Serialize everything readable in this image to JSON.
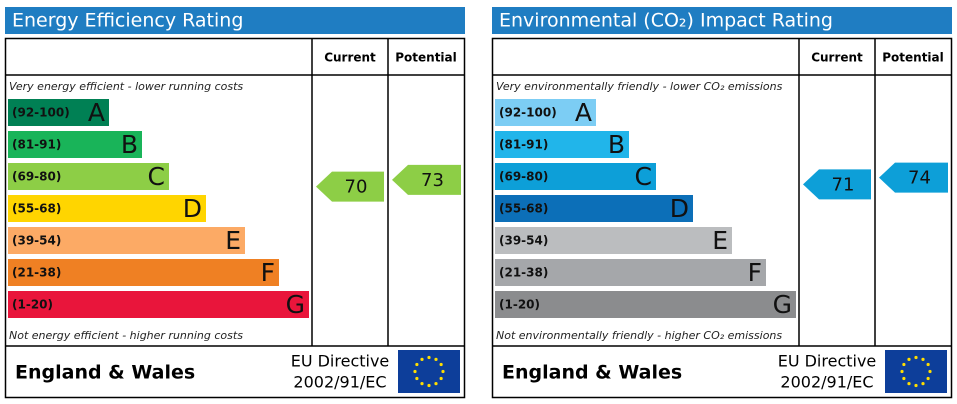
{
  "panels": [
    {
      "title": "Energy Efficiency Rating",
      "headers": [
        "Current",
        "Potential"
      ],
      "top_note": "Very energy efficient - lower running costs",
      "bottom_note": "Not energy efficient - higher running costs",
      "bands": [
        {
          "range": "(92-100)",
          "letter": "A",
          "color": "#008054"
        },
        {
          "range": "(81-91)",
          "letter": "B",
          "color": "#19b459"
        },
        {
          "range": "(69-80)",
          "letter": "C",
          "color": "#8dce46"
        },
        {
          "range": "(55-68)",
          "letter": "D",
          "color": "#ffd500"
        },
        {
          "range": "(39-54)",
          "letter": "E",
          "color": "#fcaa65"
        },
        {
          "range": "(21-38)",
          "letter": "F",
          "color": "#ef8023"
        },
        {
          "range": "(1-20)",
          "letter": "G",
          "color": "#e9153b"
        }
      ],
      "current": 70,
      "potential": 73,
      "region": "England & Wales",
      "directive": [
        "EU Directive",
        "2002/91/EC"
      ]
    },
    {
      "title": "Environmental (CO₂) Impact Rating",
      "headers": [
        "Current",
        "Potential"
      ],
      "top_note": "Very environmentally friendly - lower CO₂ emissions",
      "bottom_note": "Not environmentally friendly - higher CO₂ emissions",
      "bands": [
        {
          "range": "(92-100)",
          "letter": "A",
          "color": "#7ccdf4"
        },
        {
          "range": "(81-91)",
          "letter": "B",
          "color": "#21b5ea"
        },
        {
          "range": "(69-80)",
          "letter": "C",
          "color": "#0d9fd8"
        },
        {
          "range": "(55-68)",
          "letter": "D",
          "color": "#0c6fb8"
        },
        {
          "range": "(39-54)",
          "letter": "E",
          "color": "#bbbdbf"
        },
        {
          "range": "(21-38)",
          "letter": "F",
          "color": "#a5a7aa"
        },
        {
          "range": "(1-20)",
          "letter": "G",
          "color": "#8b8c8e"
        }
      ],
      "current": 71,
      "potential": 74,
      "region": "England & Wales",
      "directive": [
        "EU Directive",
        "2002/91/EC"
      ]
    }
  ]
}
